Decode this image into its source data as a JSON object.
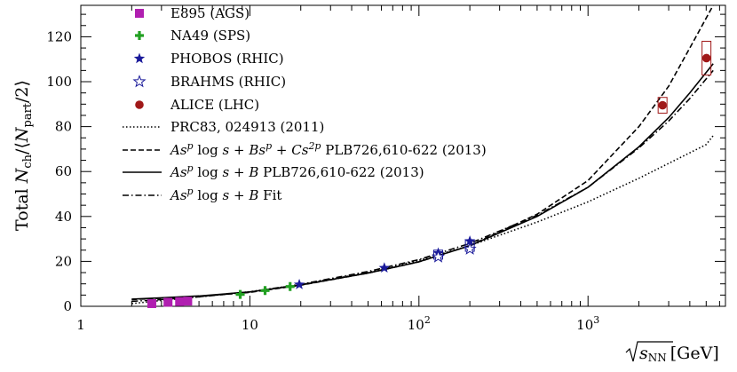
{
  "chart_data": {
    "type": "scatter",
    "xscale": "log",
    "xlim": [
      1,
      6500
    ],
    "ylim": [
      0,
      134
    ],
    "xlabel": "√s_NN [GeV]",
    "ylabel": "Total N_ch/⟨N_part/2⟩",
    "x_ticks": [
      {
        "value": 1,
        "label": "1"
      },
      {
        "value": 10,
        "label": "10"
      },
      {
        "value": 100,
        "label": "10²"
      },
      {
        "value": 1000,
        "label": "10³"
      }
    ],
    "y_ticks": [
      {
        "value": 0,
        "label": "0"
      },
      {
        "value": 20,
        "label": "20"
      },
      {
        "value": 40,
        "label": "40"
      },
      {
        "value": 60,
        "label": "60"
      },
      {
        "value": 80,
        "label": "80"
      },
      {
        "value": 100,
        "label": "100"
      },
      {
        "value": 120,
        "label": "120"
      }
    ],
    "legend_placement": "top-left",
    "series": [
      {
        "name": "E895 (AGS)",
        "marker": "square",
        "color": "#b01fb0",
        "points": [
          {
            "x": 2.63,
            "y": 1.2
          },
          {
            "x": 3.28,
            "y": 1.8
          },
          {
            "x": 3.84,
            "y": 2.1
          },
          {
            "x": 4.29,
            "y": 2.3
          }
        ]
      },
      {
        "name": "NA49 (SPS)",
        "marker": "plus",
        "color": "#22a022",
        "points": [
          {
            "x": 8.77,
            "y": 5.3
          },
          {
            "x": 12.3,
            "y": 7.0
          },
          {
            "x": 17.3,
            "y": 8.8
          }
        ]
      },
      {
        "name": "PHOBOS (RHIC)",
        "marker": "star",
        "color": "#1a1a9a",
        "points": [
          {
            "x": 19.6,
            "y": 9.7
          },
          {
            "x": 62.4,
            "y": 17.1
          },
          {
            "x": 130,
            "y": 23.7
          },
          {
            "x": 200,
            "y": 29.0
          }
        ]
      },
      {
        "name": "BRAHMS (RHIC)",
        "marker": "open-star",
        "color": "#1a1a9a",
        "points": [
          {
            "x": 130,
            "y": 22.0,
            "ylo": 21.0,
            "yhi": 25.0
          },
          {
            "x": 200,
            "y": 25.5,
            "ylo": 24.5,
            "yhi": 29.5
          }
        ]
      },
      {
        "name": "ALICE (LHC)",
        "marker": "circle",
        "color": "#a01818",
        "points": [
          {
            "x": 2760,
            "y": 89.5,
            "ylo": 86.0,
            "yhi": 93.0
          },
          {
            "x": 5020,
            "y": 110.5,
            "ylo": 103.0,
            "yhi": 118.0
          }
        ]
      }
    ],
    "curves": [
      {
        "name": "PRC83, 024913 (2011)",
        "style": "dotted",
        "points": [
          [
            2,
            1.2
          ],
          [
            3,
            2.6
          ],
          [
            5,
            4.2
          ],
          [
            10,
            6.5
          ],
          [
            20,
            9.7
          ],
          [
            50,
            15.0
          ],
          [
            100,
            20.5
          ],
          [
            200,
            27.0
          ],
          [
            500,
            37.5
          ],
          [
            1000,
            46.5
          ],
          [
            2000,
            57.0
          ],
          [
            5000,
            72.0
          ],
          [
            5500,
            76.0
          ]
        ]
      },
      {
        "name": "As^p log s + Bs^p + Cs^2p PLB726,610-622 (2013)",
        "style": "dashed",
        "points": [
          [
            2,
            3.0
          ],
          [
            3,
            3.6
          ],
          [
            5,
            4.4
          ],
          [
            10,
            6.2
          ],
          [
            20,
            9.4
          ],
          [
            50,
            14.8
          ],
          [
            100,
            19.8
          ],
          [
            200,
            27.0
          ],
          [
            500,
            41.0
          ],
          [
            1000,
            56.0
          ],
          [
            2000,
            80.0
          ],
          [
            3000,
            98.0
          ],
          [
            4000,
            115.0
          ],
          [
            5500,
            134.0
          ]
        ]
      },
      {
        "name": "As^p log s + B PLB726,610-622 (2013)",
        "style": "solid",
        "points": [
          [
            2,
            3.2
          ],
          [
            3,
            3.8
          ],
          [
            5,
            4.6
          ],
          [
            10,
            6.4
          ],
          [
            20,
            9.5
          ],
          [
            50,
            14.8
          ],
          [
            100,
            19.8
          ],
          [
            200,
            27.0
          ],
          [
            500,
            40.0
          ],
          [
            1000,
            53.0
          ],
          [
            2000,
            71.0
          ],
          [
            3000,
            84.0
          ],
          [
            4000,
            95.0
          ],
          [
            5500,
            108.0
          ]
        ]
      },
      {
        "name": "As^p log s + B Fit",
        "style": "dashdot",
        "points": [
          [
            2,
            2.2
          ],
          [
            3,
            3.0
          ],
          [
            5,
            4.2
          ],
          [
            10,
            6.4
          ],
          [
            20,
            9.8
          ],
          [
            50,
            15.5
          ],
          [
            100,
            20.8
          ],
          [
            200,
            28.0
          ],
          [
            500,
            40.5
          ],
          [
            1000,
            53.0
          ],
          [
            2000,
            70.5
          ],
          [
            3000,
            82.5
          ],
          [
            4000,
            92.5
          ],
          [
            5500,
            105.0
          ]
        ]
      }
    ]
  }
}
